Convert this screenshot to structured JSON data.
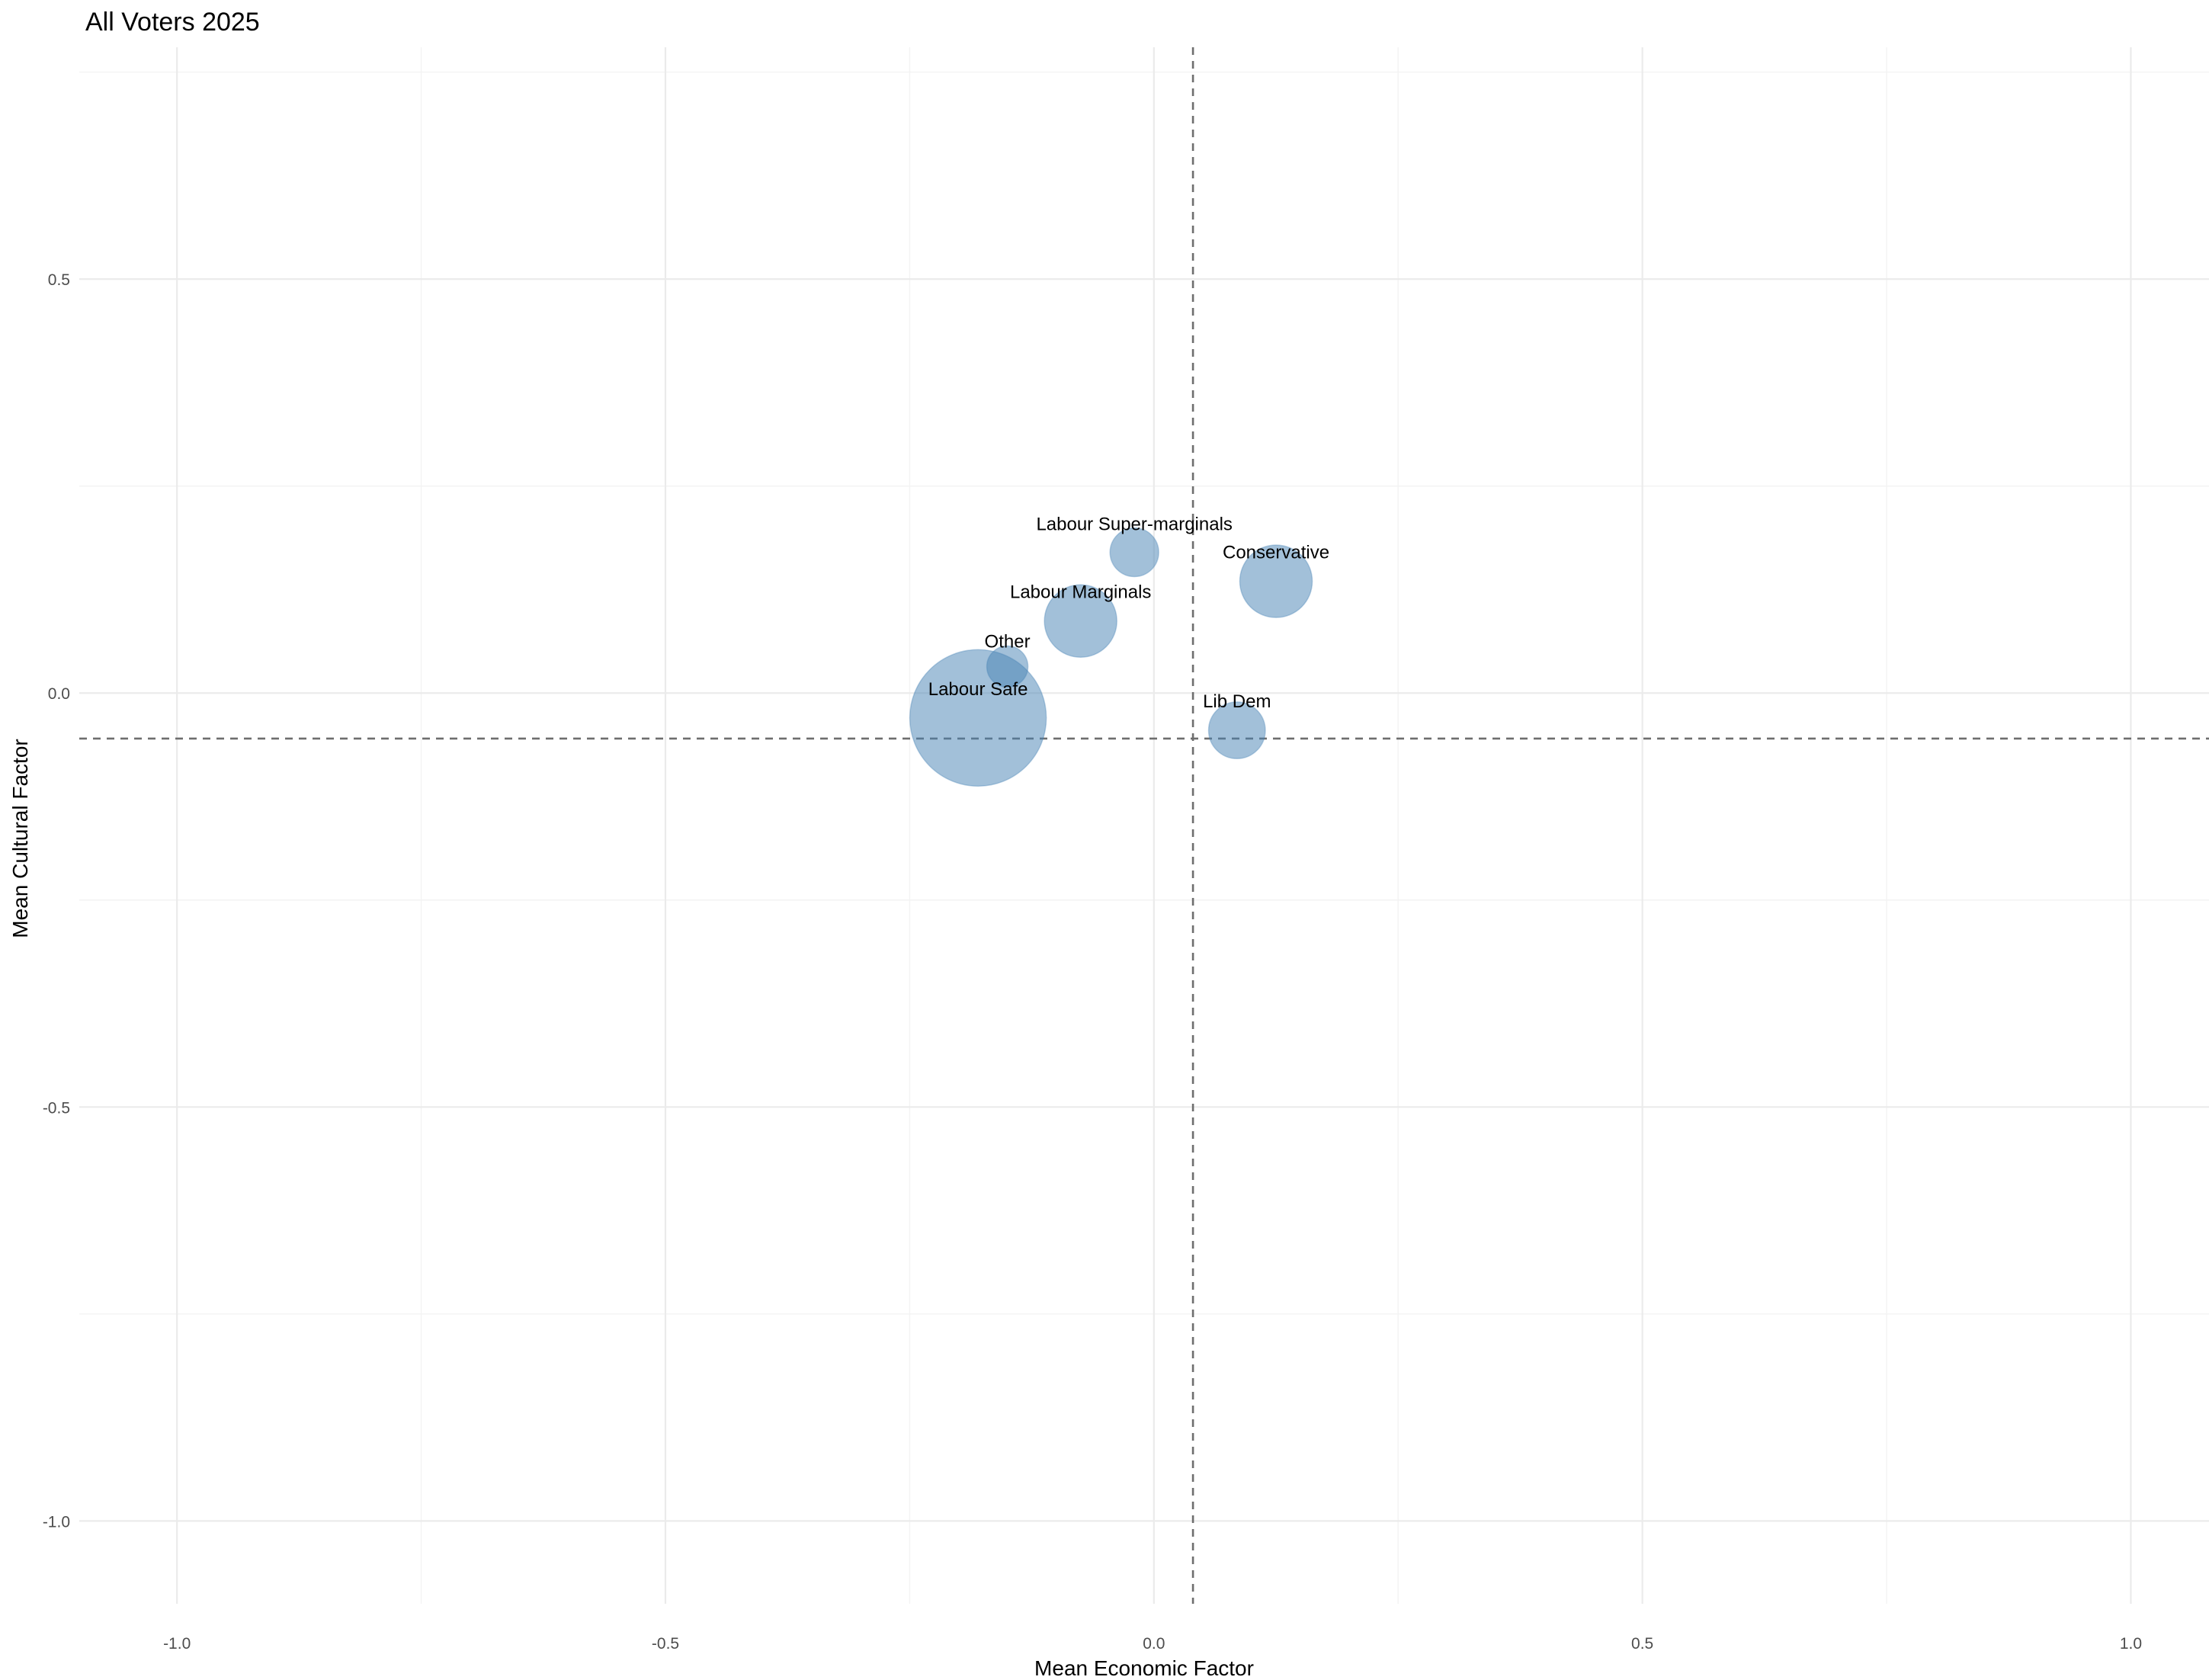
{
  "chart_data": {
    "type": "scatter",
    "title": "All Voters 2025",
    "xlabel": "Mean Economic Factor",
    "ylabel": "Mean Cultural Factor",
    "xlim": [
      -1.1,
      1.08
    ],
    "ylim": [
      -1.1,
      0.78
    ],
    "x_ticks": [
      -1.0,
      -0.5,
      0.0,
      0.5,
      1.0
    ],
    "x_tick_labels": [
      "-1.0",
      "-0.5",
      "0.0",
      "0.5",
      "1.0"
    ],
    "y_ticks": [
      -1.0,
      -0.5,
      0.0,
      0.5
    ],
    "y_tick_labels": [
      "-1.0",
      "-0.5",
      "0.0",
      "0.5"
    ],
    "grid": true,
    "ref_lines": {
      "x": 0.04,
      "y": -0.055
    },
    "point_color": "#4682b4",
    "points": [
      {
        "label": "Labour Super-marginals",
        "x": -0.02,
        "y": 0.17,
        "size": 1.4
      },
      {
        "label": "Conservative",
        "x": 0.125,
        "y": 0.135,
        "size": 3.1
      },
      {
        "label": "Labour Marginals",
        "x": -0.075,
        "y": 0.087,
        "size": 3.1
      },
      {
        "label": "Other",
        "x": -0.15,
        "y": 0.032,
        "size": 1.0
      },
      {
        "label": "Labour Safe",
        "x": -0.18,
        "y": -0.03,
        "size": 11.0
      },
      {
        "label": "Lib Dem",
        "x": 0.085,
        "y": -0.045,
        "size": 1.9
      }
    ]
  }
}
